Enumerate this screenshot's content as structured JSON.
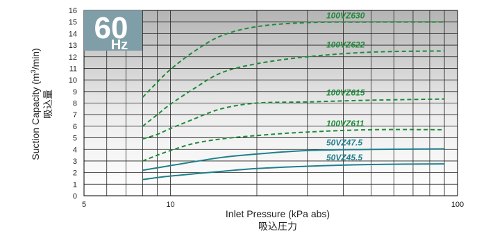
{
  "chart_data": {
    "type": "line",
    "x_scale": "log",
    "xlim": [
      5,
      100
    ],
    "ylim": [
      0,
      16
    ],
    "x_ticks": [
      "5",
      "10",
      "100"
    ],
    "y_ticks": [
      "0",
      "1",
      "2",
      "3",
      "4",
      "5",
      "6",
      "7",
      "8",
      "9",
      "10",
      "11",
      "12",
      "13",
      "14",
      "15",
      "16"
    ],
    "xlabel": "Inlet Pressure (kPa abs)",
    "xlabel_sub": "吸込圧力",
    "ylabel": "Suction Capacity (m3/min)",
    "ylabel_pre": "Suction Capacity (m",
    "ylabel_sup": "3",
    "ylabel_post": "/min)",
    "ylabel_sub": "吸込量",
    "grid": true,
    "frequency_badge": {
      "number": "60",
      "unit": "Hz"
    },
    "colors": {
      "dashed": "#1f8a3a",
      "solid": "#1e7f8c",
      "badge": "#7f9ea8"
    },
    "series": [
      {
        "name": "100VZ630",
        "style": "dashed",
        "x": [
          8,
          9,
          10,
          12,
          15,
          20,
          30,
          50,
          90
        ],
        "y": [
          8.5,
          9.8,
          10.9,
          12.4,
          13.8,
          14.6,
          14.95,
          15.0,
          15.0
        ]
      },
      {
        "name": "100VZ622",
        "style": "dashed",
        "x": [
          8,
          9,
          10,
          12,
          15,
          20,
          30,
          50,
          90
        ],
        "y": [
          6.0,
          7.0,
          7.9,
          9.2,
          10.6,
          11.4,
          12.0,
          12.4,
          12.5
        ]
      },
      {
        "name": "100VZ615",
        "style": "dashed",
        "x": [
          8,
          9,
          10,
          12,
          15,
          20,
          30,
          50,
          90
        ],
        "y": [
          4.9,
          5.3,
          5.8,
          6.6,
          7.5,
          8.0,
          8.1,
          8.25,
          8.35
        ]
      },
      {
        "name": "100VZ611",
        "style": "dashed",
        "x": [
          8,
          9,
          10,
          12,
          15,
          20,
          30,
          50,
          90
        ],
        "y": [
          3.0,
          3.5,
          3.9,
          4.5,
          4.9,
          5.2,
          5.5,
          5.7,
          5.7
        ]
      },
      {
        "name": "50VZ47.5",
        "style": "solid",
        "x": [
          8,
          10,
          15,
          20,
          30,
          50,
          90
        ],
        "y": [
          2.2,
          2.6,
          3.3,
          3.6,
          3.9,
          4.0,
          4.05
        ]
      },
      {
        "name": "50VZ45.5",
        "style": "solid",
        "x": [
          8,
          10,
          15,
          20,
          30,
          50,
          90
        ],
        "y": [
          1.4,
          1.7,
          2.1,
          2.35,
          2.55,
          2.7,
          2.75
        ]
      }
    ]
  }
}
